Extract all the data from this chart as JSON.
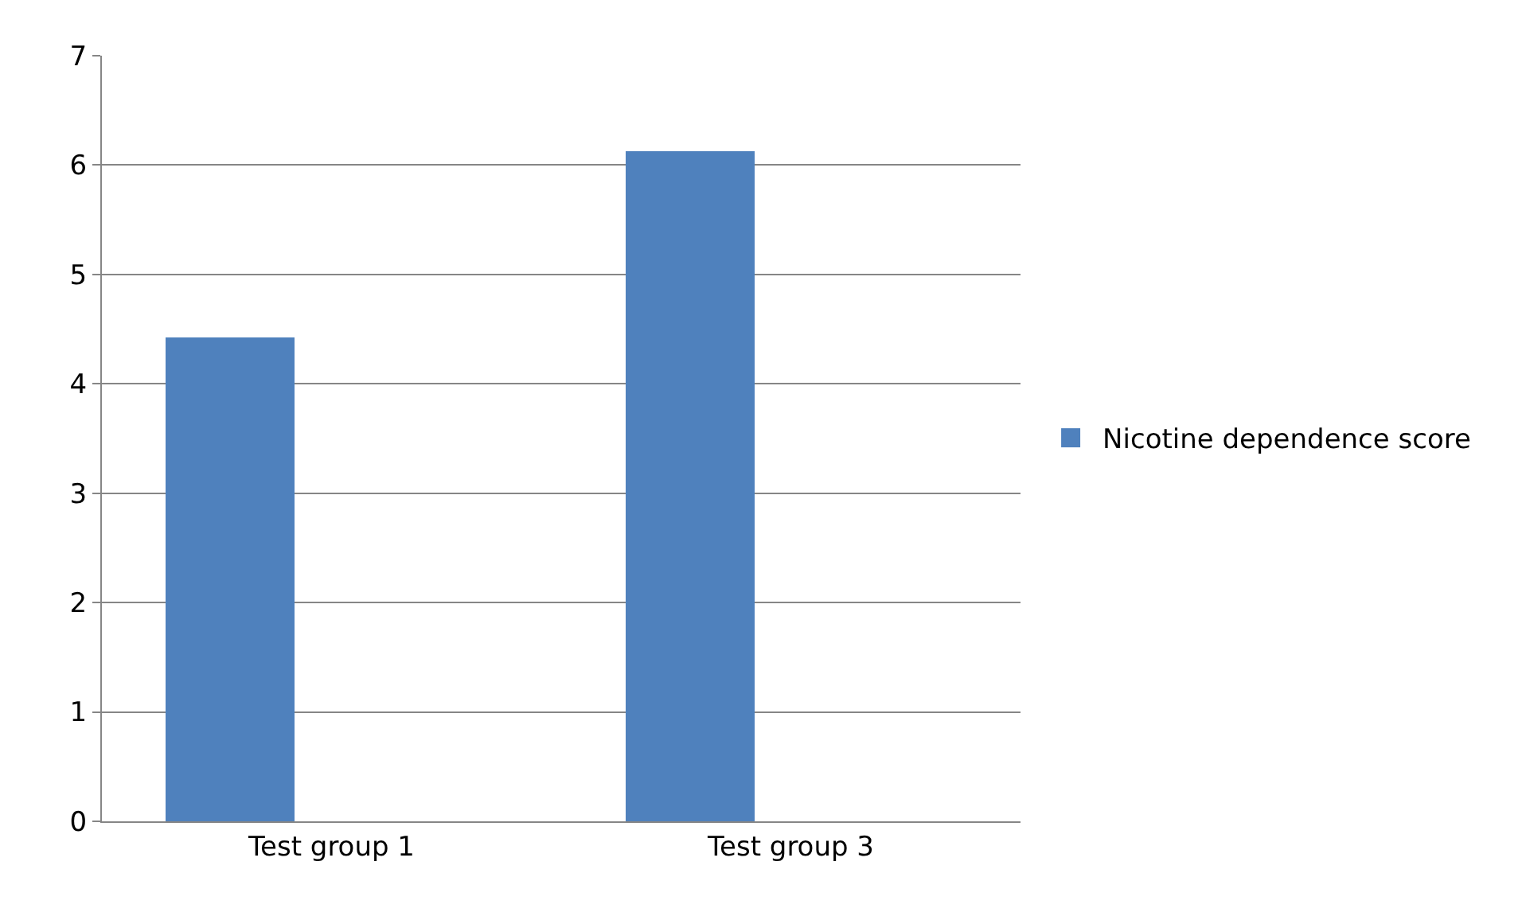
{
  "chart_data": {
    "type": "bar",
    "categories": [
      "Test group 1",
      "Test group 3"
    ],
    "series": [
      {
        "name": "Nicotine dependence score",
        "color": "#4f81bd",
        "values": [
          4.43,
          6.12
        ]
      }
    ],
    "ylim": [
      0,
      7
    ],
    "yticks": [
      0,
      1,
      2,
      3,
      4,
      5,
      6,
      7
    ],
    "grid": "y",
    "legend": "right"
  }
}
